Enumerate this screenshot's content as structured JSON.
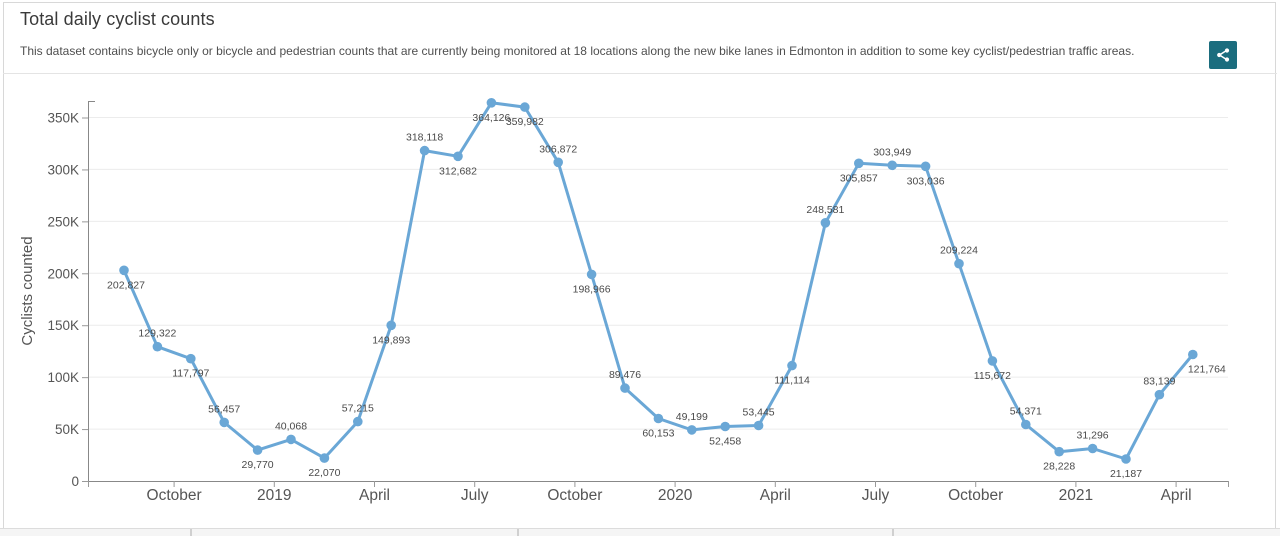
{
  "header": {
    "title": "Total daily cyclist counts",
    "description": "This dataset contains bicycle only or bicycle and pedestrian counts that are currently being monitored at 18 locations along the new bike lanes in Edmonton in addition to some key cyclist/pedestrian traffic areas.",
    "share_icon": "share-icon"
  },
  "colors": {
    "series": "#6aa7d6",
    "share_button": "#1b6d7e",
    "grid": "#ececec",
    "axis": "#888888",
    "label": "#4a4a4a"
  },
  "chart_data": {
    "type": "line",
    "title": "Total daily cyclist counts",
    "xlabel": "",
    "ylabel": "Cyclists counted",
    "ylim": [
      0,
      366000
    ],
    "grid": "horizontal",
    "legend": "none",
    "series_color": "#6aa7d6",
    "x": [
      "2018-09",
      "2018-10",
      "2018-11",
      "2018-12",
      "2019-01",
      "2019-02",
      "2019-03",
      "2019-04",
      "2019-05",
      "2019-06",
      "2019-07",
      "2019-08",
      "2019-09",
      "2019-10",
      "2019-11",
      "2019-12",
      "2020-01",
      "2020-02",
      "2020-03",
      "2020-04",
      "2020-05",
      "2020-06",
      "2020-07",
      "2020-08",
      "2020-09",
      "2020-10",
      "2020-11",
      "2020-12",
      "2021-01",
      "2021-02",
      "2021-03",
      "2021-04",
      "2021-05"
    ],
    "values": [
      202827,
      129322,
      117797,
      56457,
      29770,
      40068,
      22070,
      57215,
      149893,
      318118,
      312682,
      364126,
      359982,
      306872,
      198966,
      89476,
      60153,
      49199,
      52458,
      53445,
      111114,
      248581,
      305857,
      303949,
      303036,
      209224,
      115672,
      54371,
      28228,
      31296,
      21187,
      83139,
      121764
    ],
    "point_labels": [
      "202,827",
      "129,322",
      "117,797",
      "56,457",
      "29,770",
      "40,068",
      "22,070",
      "57,215",
      "149,893",
      "318,118",
      "312,682",
      "364,126",
      "359,982",
      "306,872",
      "198,966",
      "89,476",
      "60,153",
      "49,199",
      "52,458",
      "53,445",
      "111,114",
      "248,581",
      "305,857",
      "303,949",
      "303,036",
      "209,224",
      "115,672",
      "54,371",
      "28,228",
      "31,296",
      "21,187",
      "83,139",
      "121,764"
    ],
    "label_side": [
      "below",
      "above",
      "below",
      "above",
      "below",
      "above",
      "below",
      "above",
      "below",
      "above",
      "below",
      "below",
      "below",
      "above",
      "below",
      "above",
      "below",
      "above",
      "below",
      "above",
      "below",
      "above",
      "below",
      "above",
      "below",
      "above",
      "below",
      "above",
      "below",
      "above",
      "below",
      "above",
      "below"
    ],
    "label_dx": [
      2,
      0,
      0,
      0,
      0,
      0,
      0,
      0,
      0,
      0,
      0,
      0,
      0,
      0,
      0,
      0,
      0,
      0,
      0,
      0,
      0,
      0,
      0,
      0,
      0,
      0,
      0,
      0,
      0,
      0,
      0,
      0,
      14
    ],
    "y_ticks": [
      {
        "v": 0,
        "label": "0"
      },
      {
        "v": 50000,
        "label": "50K"
      },
      {
        "v": 100000,
        "label": "100K"
      },
      {
        "v": 150000,
        "label": "150K"
      },
      {
        "v": 200000,
        "label": "200K"
      },
      {
        "v": 250000,
        "label": "250K"
      },
      {
        "v": 300000,
        "label": "300K"
      },
      {
        "v": 350000,
        "label": "350K"
      }
    ],
    "x_tick_labels": [
      "October",
      "2019",
      "April",
      "July",
      "October",
      "2020",
      "April",
      "July",
      "October",
      "2021",
      "April"
    ]
  }
}
